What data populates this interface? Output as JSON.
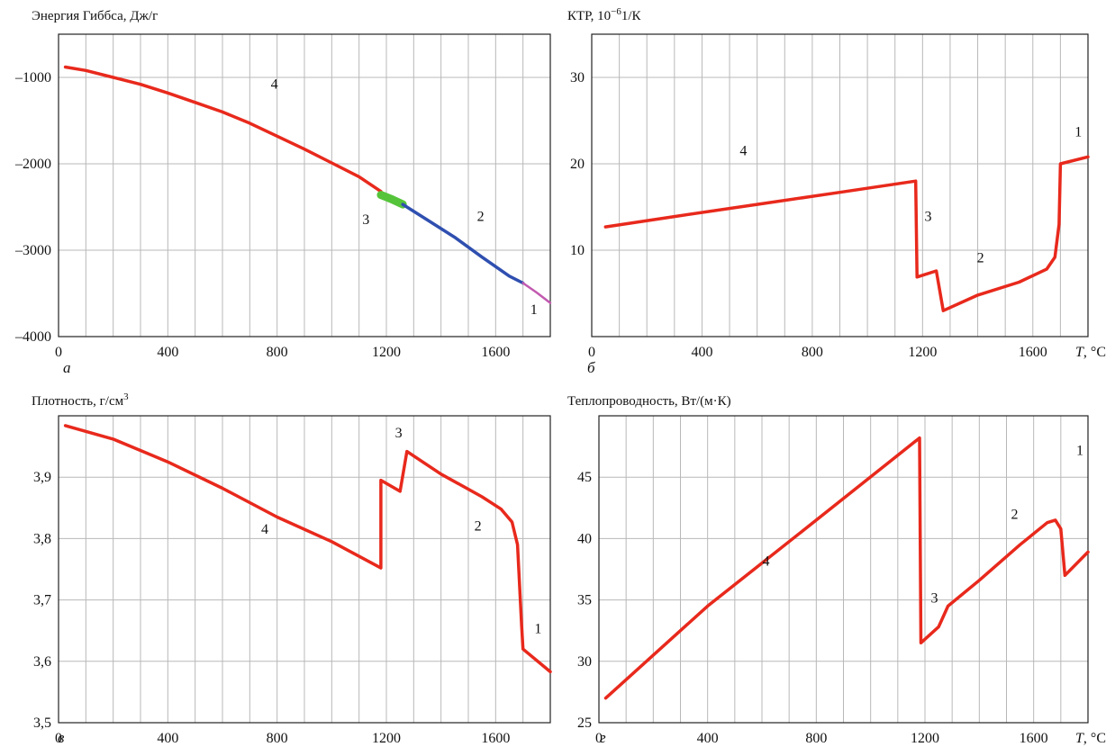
{
  "colors": {
    "series_main": "#e8291c",
    "phase3": "#55c43a",
    "phase2": "#2f4fb0",
    "phase1": "#c25ab0",
    "grid": "#b8b8b8"
  },
  "chart_data": [
    {
      "id": "a",
      "type": "line",
      "title": "Энергия Гиббса, Дж/г",
      "panel_letter": "а",
      "xlabel": "",
      "ylabel": "",
      "xlim": [
        0,
        1800
      ],
      "ylim": [
        -4000,
        -500
      ],
      "xticks": [
        {
          "v": 0,
          "t": "0"
        },
        {
          "v": 400,
          "t": "400"
        },
        {
          "v": 800,
          "t": "800"
        },
        {
          "v": 1200,
          "t": "1200"
        },
        {
          "v": 1600,
          "t": "1600"
        }
      ],
      "yticks": [
        {
          "v": -1000,
          "t": "–1000"
        },
        {
          "v": -2000,
          "t": "–2000"
        },
        {
          "v": -3000,
          "t": "–3000"
        },
        {
          "v": -4000,
          "t": "–4000"
        }
      ],
      "grid": true,
      "series": [
        {
          "color": "#e8291c",
          "width": 3.5,
          "points": [
            [
              25,
              -880
            ],
            [
              100,
              -920
            ],
            [
              200,
              -1000
            ],
            [
              300,
              -1080
            ],
            [
              400,
              -1180
            ],
            [
              500,
              -1290
            ],
            [
              600,
              -1400
            ],
            [
              700,
              -1530
            ],
            [
              800,
              -1680
            ],
            [
              900,
              -1830
            ],
            [
              1000,
              -1990
            ],
            [
              1100,
              -2150
            ],
            [
              1180,
              -2320
            ]
          ]
        },
        {
          "color": "#55c43a",
          "width": 9,
          "points": [
            [
              1180,
              -2360
            ],
            [
              1220,
              -2410
            ],
            [
              1260,
              -2470
            ]
          ]
        },
        {
          "color": "#2f4fb0",
          "width": 3.5,
          "points": [
            [
              1260,
              -2470
            ],
            [
              1350,
              -2650
            ],
            [
              1450,
              -2850
            ],
            [
              1550,
              -3080
            ],
            [
              1650,
              -3300
            ],
            [
              1700,
              -3380
            ]
          ]
        },
        {
          "color": "#c25ab0",
          "width": 2.5,
          "points": [
            [
              1700,
              -3380
            ],
            [
              1750,
              -3490
            ],
            [
              1800,
              -3610
            ]
          ]
        }
      ],
      "annotations": [
        {
          "text": "4",
          "x": 790,
          "y": -1130
        },
        {
          "text": "3",
          "x": 1125,
          "y": -2700
        },
        {
          "text": "2",
          "x": 1545,
          "y": -2660
        },
        {
          "text": "1",
          "x": 1740,
          "y": -3740
        }
      ]
    },
    {
      "id": "b",
      "type": "line",
      "title": "КТР, 10",
      "title_sup": "−6",
      "title_tail": "1/К",
      "panel_letter": "б",
      "xlabel": "T, °C",
      "ylabel": "",
      "xlim": [
        0,
        1800
      ],
      "ylim": [
        0,
        35
      ],
      "xticks": [
        {
          "v": 0,
          "t": "0"
        },
        {
          "v": 400,
          "t": "400"
        },
        {
          "v": 800,
          "t": "800"
        },
        {
          "v": 1200,
          "t": "1200"
        },
        {
          "v": 1600,
          "t": "1600"
        }
      ],
      "yticks": [
        {
          "v": 10,
          "t": "10"
        },
        {
          "v": 20,
          "t": "20"
        },
        {
          "v": 30,
          "t": "30"
        }
      ],
      "grid": true,
      "series": [
        {
          "color": "#e8291c",
          "width": 3.5,
          "points": [
            [
              50,
              12.7
            ],
            [
              300,
              13.9
            ],
            [
              600,
              15.3
            ],
            [
              900,
              16.7
            ],
            [
              1175,
              18.0
            ],
            [
              1180,
              6.9
            ],
            [
              1250,
              7.6
            ],
            [
              1275,
              3.0
            ],
            [
              1400,
              4.8
            ],
            [
              1550,
              6.3
            ],
            [
              1650,
              7.8
            ],
            [
              1680,
              9.2
            ],
            [
              1695,
              13.0
            ],
            [
              1700,
              20.0
            ],
            [
              1800,
              20.8
            ]
          ]
        }
      ],
      "annotations": [
        {
          "text": "4",
          "x": 550,
          "y": 21.0
        },
        {
          "text": "3",
          "x": 1220,
          "y": 13.4
        },
        {
          "text": "2",
          "x": 1410,
          "y": 8.6
        },
        {
          "text": "1",
          "x": 1765,
          "y": 23.2
        }
      ]
    },
    {
      "id": "c",
      "type": "line",
      "title": "Плотность, г/см",
      "title_sup": "3",
      "title_tail": "",
      "panel_letter": "в",
      "xlabel": "",
      "ylabel": "",
      "xlim": [
        0,
        1800
      ],
      "ylim": [
        3.5,
        4.0
      ],
      "xticks": [
        {
          "v": 0,
          "t": "0"
        },
        {
          "v": 400,
          "t": "400"
        },
        {
          "v": 800,
          "t": "800"
        },
        {
          "v": 1200,
          "t": "1200"
        },
        {
          "v": 1600,
          "t": "1600"
        }
      ],
      "yticks": [
        {
          "v": 3.5,
          "t": "3,5"
        },
        {
          "v": 3.6,
          "t": "3,6"
        },
        {
          "v": 3.7,
          "t": "3,7"
        },
        {
          "v": 3.8,
          "t": "3,8"
        },
        {
          "v": 3.9,
          "t": "3,9"
        }
      ],
      "grid": true,
      "series": [
        {
          "color": "#e8291c",
          "width": 3.5,
          "points": [
            [
              25,
              3.984
            ],
            [
              200,
              3.962
            ],
            [
              400,
              3.925
            ],
            [
              600,
              3.882
            ],
            [
              800,
              3.835
            ],
            [
              1000,
              3.795
            ],
            [
              1180,
              3.752
            ],
            [
              1180,
              3.895
            ],
            [
              1250,
              3.877
            ],
            [
              1275,
              3.942
            ],
            [
              1400,
              3.905
            ],
            [
              1550,
              3.868
            ],
            [
              1620,
              3.848
            ],
            [
              1660,
              3.827
            ],
            [
              1680,
              3.79
            ],
            [
              1695,
              3.66
            ],
            [
              1700,
              3.62
            ],
            [
              1800,
              3.583
            ]
          ]
        }
      ],
      "annotations": [
        {
          "text": "4",
          "x": 755,
          "y": 3.808
        },
        {
          "text": "3",
          "x": 1245,
          "y": 3.965
        },
        {
          "text": "2",
          "x": 1535,
          "y": 3.813
        },
        {
          "text": "1",
          "x": 1755,
          "y": 3.646
        }
      ]
    },
    {
      "id": "d",
      "type": "line",
      "title": "Теплопроводность, Вт/(м·К)",
      "title_sup": "",
      "title_tail": "",
      "panel_letter": "г",
      "xlabel": "T, °C",
      "ylabel": "",
      "xlim": [
        0,
        1800
      ],
      "ylim": [
        25,
        50
      ],
      "xticks": [
        {
          "v": 0,
          "t": "0"
        },
        {
          "v": 400,
          "t": "400"
        },
        {
          "v": 800,
          "t": "800"
        },
        {
          "v": 1200,
          "t": "1200"
        },
        {
          "v": 1600,
          "t": "1600"
        }
      ],
      "yticks": [
        {
          "v": 25,
          "t": "25"
        },
        {
          "v": 30,
          "t": "30"
        },
        {
          "v": 35,
          "t": "35"
        },
        {
          "v": 40,
          "t": "40"
        },
        {
          "v": 45,
          "t": "45"
        }
      ],
      "grid": true,
      "series": [
        {
          "color": "#e8291c",
          "width": 3.5,
          "points": [
            [
              25,
              27.0
            ],
            [
              400,
              34.5
            ],
            [
              800,
              41.5
            ],
            [
              1180,
              48.2
            ],
            [
              1185,
              31.5
            ],
            [
              1250,
              32.8
            ],
            [
              1285,
              34.5
            ],
            [
              1400,
              36.6
            ],
            [
              1550,
              39.5
            ],
            [
              1650,
              41.3
            ],
            [
              1680,
              41.5
            ],
            [
              1700,
              40.8
            ],
            [
              1715,
              37.0
            ],
            [
              1800,
              38.9
            ]
          ]
        }
      ],
      "annotations": [
        {
          "text": "4",
          "x": 615,
          "y": 37.8
        },
        {
          "text": "3",
          "x": 1235,
          "y": 34.8
        },
        {
          "text": "2",
          "x": 1530,
          "y": 41.6
        },
        {
          "text": "1",
          "x": 1770,
          "y": 46.8
        }
      ]
    }
  ]
}
